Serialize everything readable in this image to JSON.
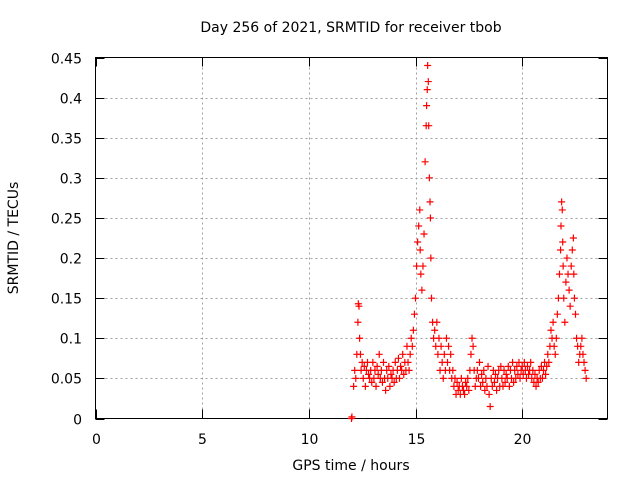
{
  "chart_data": {
    "type": "scatter",
    "title": "Day 256 of 2021, SRMTID for receiver tbob",
    "xlabel": "GPS time / hours",
    "ylabel": "SRMTID / TECUs",
    "xlim": [
      0,
      24
    ],
    "ylim": [
      0,
      0.45
    ],
    "xticks": [
      0,
      5,
      10,
      15,
      20
    ],
    "xtick_labels": [
      "0",
      "5",
      "10",
      "15",
      "20"
    ],
    "yticks": [
      0,
      0.05,
      0.1,
      0.15,
      0.2,
      0.25,
      0.3,
      0.35,
      0.4,
      0.45
    ],
    "ytick_labels": [
      "0",
      "0.05",
      "0.1",
      "0.15",
      "0.2",
      "0.25",
      "0.3",
      "0.35",
      "0.4",
      "0.45"
    ],
    "grid": true,
    "marker": "+",
    "series": [
      {
        "name": "SRMTID",
        "color": "#ff0000",
        "points": [
          [
            12.0,
            0.0
          ],
          [
            12.02,
            0.002
          ],
          [
            12.1,
            0.04
          ],
          [
            12.15,
            0.06
          ],
          [
            12.2,
            0.05
          ],
          [
            12.25,
            0.08
          ],
          [
            12.3,
            0.12
          ],
          [
            12.32,
            0.143
          ],
          [
            12.35,
            0.14
          ],
          [
            12.38,
            0.1
          ],
          [
            12.42,
            0.08
          ],
          [
            12.45,
            0.06
          ],
          [
            12.5,
            0.07
          ],
          [
            12.55,
            0.05
          ],
          [
            12.6,
            0.065
          ],
          [
            12.65,
            0.04
          ],
          [
            12.7,
            0.06
          ],
          [
            12.75,
            0.07
          ],
          [
            12.8,
            0.055
          ],
          [
            12.85,
            0.05
          ],
          [
            12.9,
            0.06
          ],
          [
            12.95,
            0.045
          ],
          [
            13.0,
            0.07
          ],
          [
            13.05,
            0.05
          ],
          [
            13.1,
            0.06
          ],
          [
            13.15,
            0.04
          ],
          [
            13.2,
            0.065
          ],
          [
            13.25,
            0.055
          ],
          [
            13.3,
            0.08
          ],
          [
            13.35,
            0.05
          ],
          [
            13.4,
            0.06
          ],
          [
            13.45,
            0.045
          ],
          [
            13.5,
            0.07
          ],
          [
            13.55,
            0.05
          ],
          [
            13.6,
            0.035
          ],
          [
            13.65,
            0.06
          ],
          [
            13.7,
            0.05
          ],
          [
            13.75,
            0.065
          ],
          [
            13.8,
            0.04
          ],
          [
            13.85,
            0.055
          ],
          [
            13.9,
            0.05
          ],
          [
            13.95,
            0.06
          ],
          [
            14.0,
            0.045
          ],
          [
            14.05,
            0.07
          ],
          [
            14.1,
            0.05
          ],
          [
            14.15,
            0.06
          ],
          [
            14.2,
            0.075
          ],
          [
            14.25,
            0.05
          ],
          [
            14.3,
            0.065
          ],
          [
            14.35,
            0.06
          ],
          [
            14.4,
            0.08
          ],
          [
            14.45,
            0.055
          ],
          [
            14.5,
            0.07
          ],
          [
            14.55,
            0.06
          ],
          [
            14.6,
            0.09
          ],
          [
            14.65,
            0.07
          ],
          [
            14.7,
            0.06
          ],
          [
            14.75,
            0.08
          ],
          [
            14.8,
            0.1
          ],
          [
            14.85,
            0.09
          ],
          [
            14.9,
            0.11
          ],
          [
            14.95,
            0.13
          ],
          [
            15.0,
            0.15
          ],
          [
            15.05,
            0.19
          ],
          [
            15.1,
            0.22
          ],
          [
            15.15,
            0.24
          ],
          [
            15.2,
            0.26
          ],
          [
            15.22,
            0.21
          ],
          [
            15.25,
            0.18
          ],
          [
            15.3,
            0.16
          ],
          [
            15.35,
            0.19
          ],
          [
            15.4,
            0.23
          ],
          [
            15.45,
            0.32
          ],
          [
            15.5,
            0.365
          ],
          [
            15.52,
            0.39
          ],
          [
            15.55,
            0.41
          ],
          [
            15.57,
            0.44
          ],
          [
            15.6,
            0.42
          ],
          [
            15.62,
            0.365
          ],
          [
            15.65,
            0.3
          ],
          [
            15.68,
            0.27
          ],
          [
            15.7,
            0.25
          ],
          [
            15.72,
            0.2
          ],
          [
            15.75,
            0.15
          ],
          [
            15.8,
            0.12
          ],
          [
            15.85,
            0.1
          ],
          [
            15.9,
            0.11
          ],
          [
            15.95,
            0.09
          ],
          [
            16.0,
            0.12
          ],
          [
            16.05,
            0.08
          ],
          [
            16.1,
            0.1
          ],
          [
            16.15,
            0.06
          ],
          [
            16.2,
            0.09
          ],
          [
            16.25,
            0.07
          ],
          [
            16.3,
            0.05
          ],
          [
            16.35,
            0.08
          ],
          [
            16.4,
            0.06
          ],
          [
            16.45,
            0.1
          ],
          [
            16.5,
            0.07
          ],
          [
            16.55,
            0.09
          ],
          [
            16.6,
            0.06
          ],
          [
            16.65,
            0.08
          ],
          [
            16.7,
            0.05
          ],
          [
            16.75,
            0.06
          ],
          [
            16.8,
            0.04
          ],
          [
            16.85,
            0.05
          ],
          [
            16.9,
            0.03
          ],
          [
            16.95,
            0.045
          ],
          [
            17.0,
            0.035
          ],
          [
            17.05,
            0.04
          ],
          [
            17.1,
            0.03
          ],
          [
            17.15,
            0.05
          ],
          [
            17.2,
            0.04
          ],
          [
            17.25,
            0.035
          ],
          [
            17.3,
            0.03
          ],
          [
            17.35,
            0.045
          ],
          [
            17.4,
            0.04
          ],
          [
            17.45,
            0.05
          ],
          [
            17.5,
            0.035
          ],
          [
            17.55,
            0.06
          ],
          [
            17.6,
            0.08
          ],
          [
            17.65,
            0.1
          ],
          [
            17.7,
            0.09
          ],
          [
            17.75,
            0.06
          ],
          [
            17.8,
            0.04
          ],
          [
            17.85,
            0.05
          ],
          [
            17.9,
            0.06
          ],
          [
            17.95,
            0.05
          ],
          [
            18.0,
            0.07
          ],
          [
            18.05,
            0.04
          ],
          [
            18.1,
            0.055
          ],
          [
            18.15,
            0.045
          ],
          [
            18.2,
            0.06
          ],
          [
            18.25,
            0.035
          ],
          [
            18.3,
            0.05
          ],
          [
            18.35,
            0.04
          ],
          [
            18.4,
            0.065
          ],
          [
            18.45,
            0.03
          ],
          [
            18.5,
            0.015
          ],
          [
            18.55,
            0.05
          ],
          [
            18.6,
            0.04
          ],
          [
            18.65,
            0.06
          ],
          [
            18.7,
            0.045
          ],
          [
            18.75,
            0.055
          ],
          [
            18.8,
            0.035
          ],
          [
            18.85,
            0.05
          ],
          [
            18.9,
            0.06
          ],
          [
            18.95,
            0.04
          ],
          [
            19.0,
            0.065
          ],
          [
            19.05,
            0.05
          ],
          [
            19.1,
            0.04
          ],
          [
            19.15,
            0.06
          ],
          [
            19.2,
            0.045
          ],
          [
            19.25,
            0.055
          ],
          [
            19.3,
            0.05
          ],
          [
            19.35,
            0.065
          ],
          [
            19.4,
            0.04
          ],
          [
            19.45,
            0.06
          ],
          [
            19.5,
            0.05
          ],
          [
            19.55,
            0.07
          ],
          [
            19.6,
            0.045
          ],
          [
            19.65,
            0.06
          ],
          [
            19.7,
            0.05
          ],
          [
            19.75,
            0.065
          ],
          [
            19.8,
            0.055
          ],
          [
            19.85,
            0.07
          ],
          [
            19.9,
            0.05
          ],
          [
            19.95,
            0.06
          ],
          [
            20.0,
            0.065
          ],
          [
            20.05,
            0.055
          ],
          [
            20.1,
            0.07
          ],
          [
            20.15,
            0.06
          ],
          [
            20.2,
            0.05
          ],
          [
            20.25,
            0.065
          ],
          [
            20.3,
            0.055
          ],
          [
            20.35,
            0.06
          ],
          [
            20.4,
            0.07
          ],
          [
            20.45,
            0.05
          ],
          [
            20.5,
            0.06
          ],
          [
            20.55,
            0.045
          ],
          [
            20.6,
            0.055
          ],
          [
            20.65,
            0.04
          ],
          [
            20.7,
            0.05
          ],
          [
            20.75,
            0.045
          ],
          [
            20.8,
            0.06
          ],
          [
            20.85,
            0.05
          ],
          [
            20.9,
            0.065
          ],
          [
            20.95,
            0.05
          ],
          [
            21.0,
            0.06
          ],
          [
            21.05,
            0.07
          ],
          [
            21.1,
            0.055
          ],
          [
            21.15,
            0.065
          ],
          [
            21.2,
            0.08
          ],
          [
            21.25,
            0.07
          ],
          [
            21.3,
            0.09
          ],
          [
            21.35,
            0.11
          ],
          [
            21.4,
            0.1
          ],
          [
            21.45,
            0.12
          ],
          [
            21.5,
            0.09
          ],
          [
            21.55,
            0.08
          ],
          [
            21.6,
            0.1
          ],
          [
            21.65,
            0.13
          ],
          [
            21.7,
            0.15
          ],
          [
            21.75,
            0.18
          ],
          [
            21.8,
            0.21
          ],
          [
            21.82,
            0.24
          ],
          [
            21.85,
            0.27
          ],
          [
            21.88,
            0.26
          ],
          [
            21.9,
            0.22
          ],
          [
            21.92,
            0.19
          ],
          [
            21.95,
            0.15
          ],
          [
            22.0,
            0.12
          ],
          [
            22.05,
            0.17
          ],
          [
            22.1,
            0.2
          ],
          [
            22.15,
            0.18
          ],
          [
            22.2,
            0.16
          ],
          [
            22.25,
            0.14
          ],
          [
            22.3,
            0.19
          ],
          [
            22.35,
            0.21
          ],
          [
            22.4,
            0.225
          ],
          [
            22.42,
            0.18
          ],
          [
            22.45,
            0.15
          ],
          [
            22.5,
            0.13
          ],
          [
            22.55,
            0.1
          ],
          [
            22.6,
            0.09
          ],
          [
            22.65,
            0.07
          ],
          [
            22.7,
            0.08
          ],
          [
            22.75,
            0.09
          ],
          [
            22.8,
            0.1
          ],
          [
            22.85,
            0.08
          ],
          [
            22.9,
            0.07
          ],
          [
            22.95,
            0.06
          ],
          [
            23.0,
            0.05
          ]
        ]
      }
    ]
  }
}
